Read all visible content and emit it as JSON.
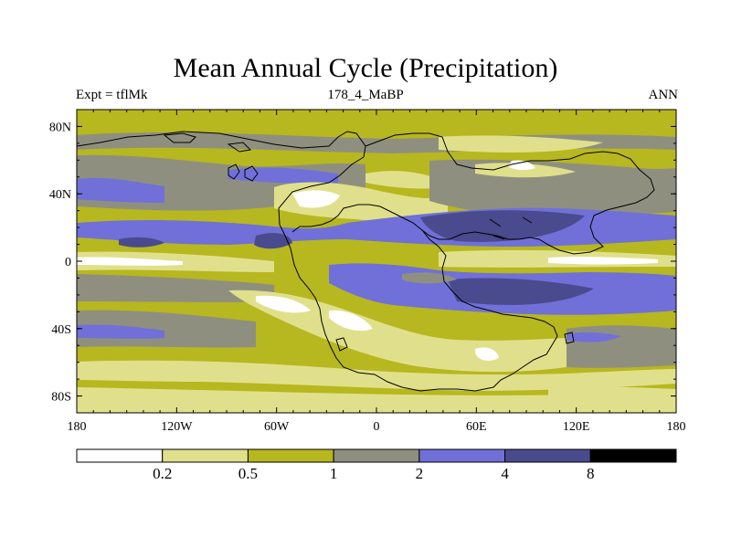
{
  "title": "Mean Annual Cycle (Precipitation)",
  "subtitle": {
    "left": "Expt = tflMk",
    "center": "178_4_MaBP",
    "right": "ANN"
  },
  "map": {
    "projection": "cylindrical equidistant",
    "lon_range": [
      -180,
      180
    ],
    "lat_range": [
      -90,
      90
    ],
    "lon_ticks": [
      {
        "value": -180,
        "label": "180"
      },
      {
        "value": -120,
        "label": "120W"
      },
      {
        "value": -60,
        "label": "60W"
      },
      {
        "value": 0,
        "label": "0"
      },
      {
        "value": 60,
        "label": "60E"
      },
      {
        "value": 120,
        "label": "120E"
      },
      {
        "value": 180,
        "label": "180"
      }
    ],
    "lat_ticks": [
      {
        "value": 80,
        "label": "80N"
      },
      {
        "value": 40,
        "label": "40N"
      },
      {
        "value": 0,
        "label": "0"
      },
      {
        "value": -40,
        "label": "40S"
      },
      {
        "value": -80,
        "label": "80S"
      }
    ],
    "colors": {
      "lt_0.2": "#ffffff",
      "0.2_0.5": "#e0e08c",
      "0.5_1": "#b7b71f",
      "1_2": "#8f8f80",
      "2_4": "#7070d8",
      "4_8": "#4a4a8e",
      "gt_8": "#000000"
    }
  },
  "colorbar": {
    "colors": [
      "#ffffff",
      "#e0e08c",
      "#b7b71f",
      "#8f8f80",
      "#7070d8",
      "#4a4a8e",
      "#000000"
    ],
    "labels": [
      "0.2",
      "0.5",
      "1",
      "2",
      "4",
      "8"
    ]
  }
}
